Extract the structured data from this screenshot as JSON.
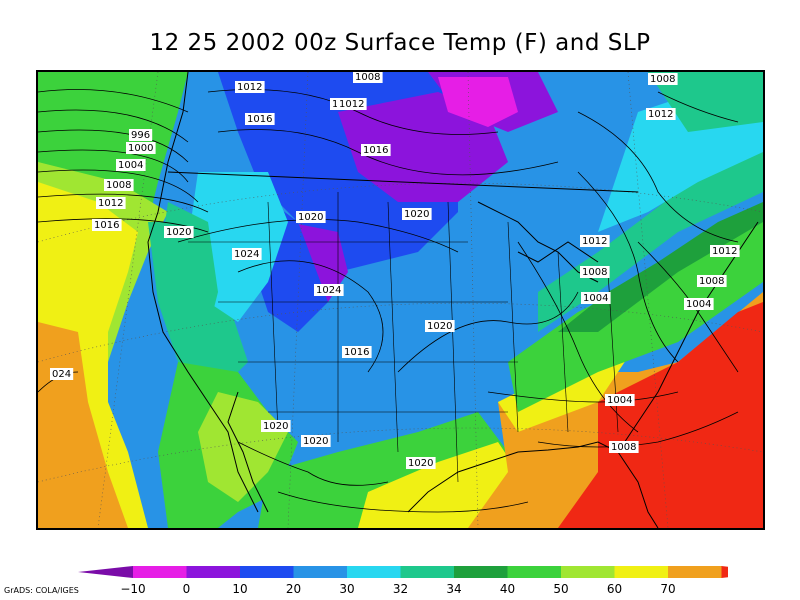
{
  "title": "12 25 2002 00z Surface Temp (F) and SLP",
  "credit": "GrADS: COLA/IGES",
  "colorbar": {
    "colors": [
      "#7a0ca8",
      "#e61ee6",
      "#8c14dc",
      "#1e4bf0",
      "#2893e6",
      "#28d7f0",
      "#1ec88c",
      "#1ea03c",
      "#3cd23c",
      "#a0e632",
      "#f0f014",
      "#f0a01e",
      "#f02814"
    ],
    "tick_labels": [
      "−10",
      "0",
      "10",
      "20",
      "30",
      "32",
      "34",
      "40",
      "50",
      "60",
      "70"
    ]
  },
  "isobar_labels": [
    "1012",
    "1008",
    "1016",
    "1012",
    "996",
    "1000",
    "1004",
    "1008",
    "1012",
    "1016",
    "1020",
    "1016",
    "1020",
    "1020",
    "1024",
    "1024",
    "1020",
    "1016",
    "1008",
    "1012",
    "1012",
    "1012",
    "1008",
    "1004",
    "1012",
    "1008",
    "1004",
    "1004",
    "1008",
    "1020",
    "1020",
    "1020",
    "024"
  ]
}
